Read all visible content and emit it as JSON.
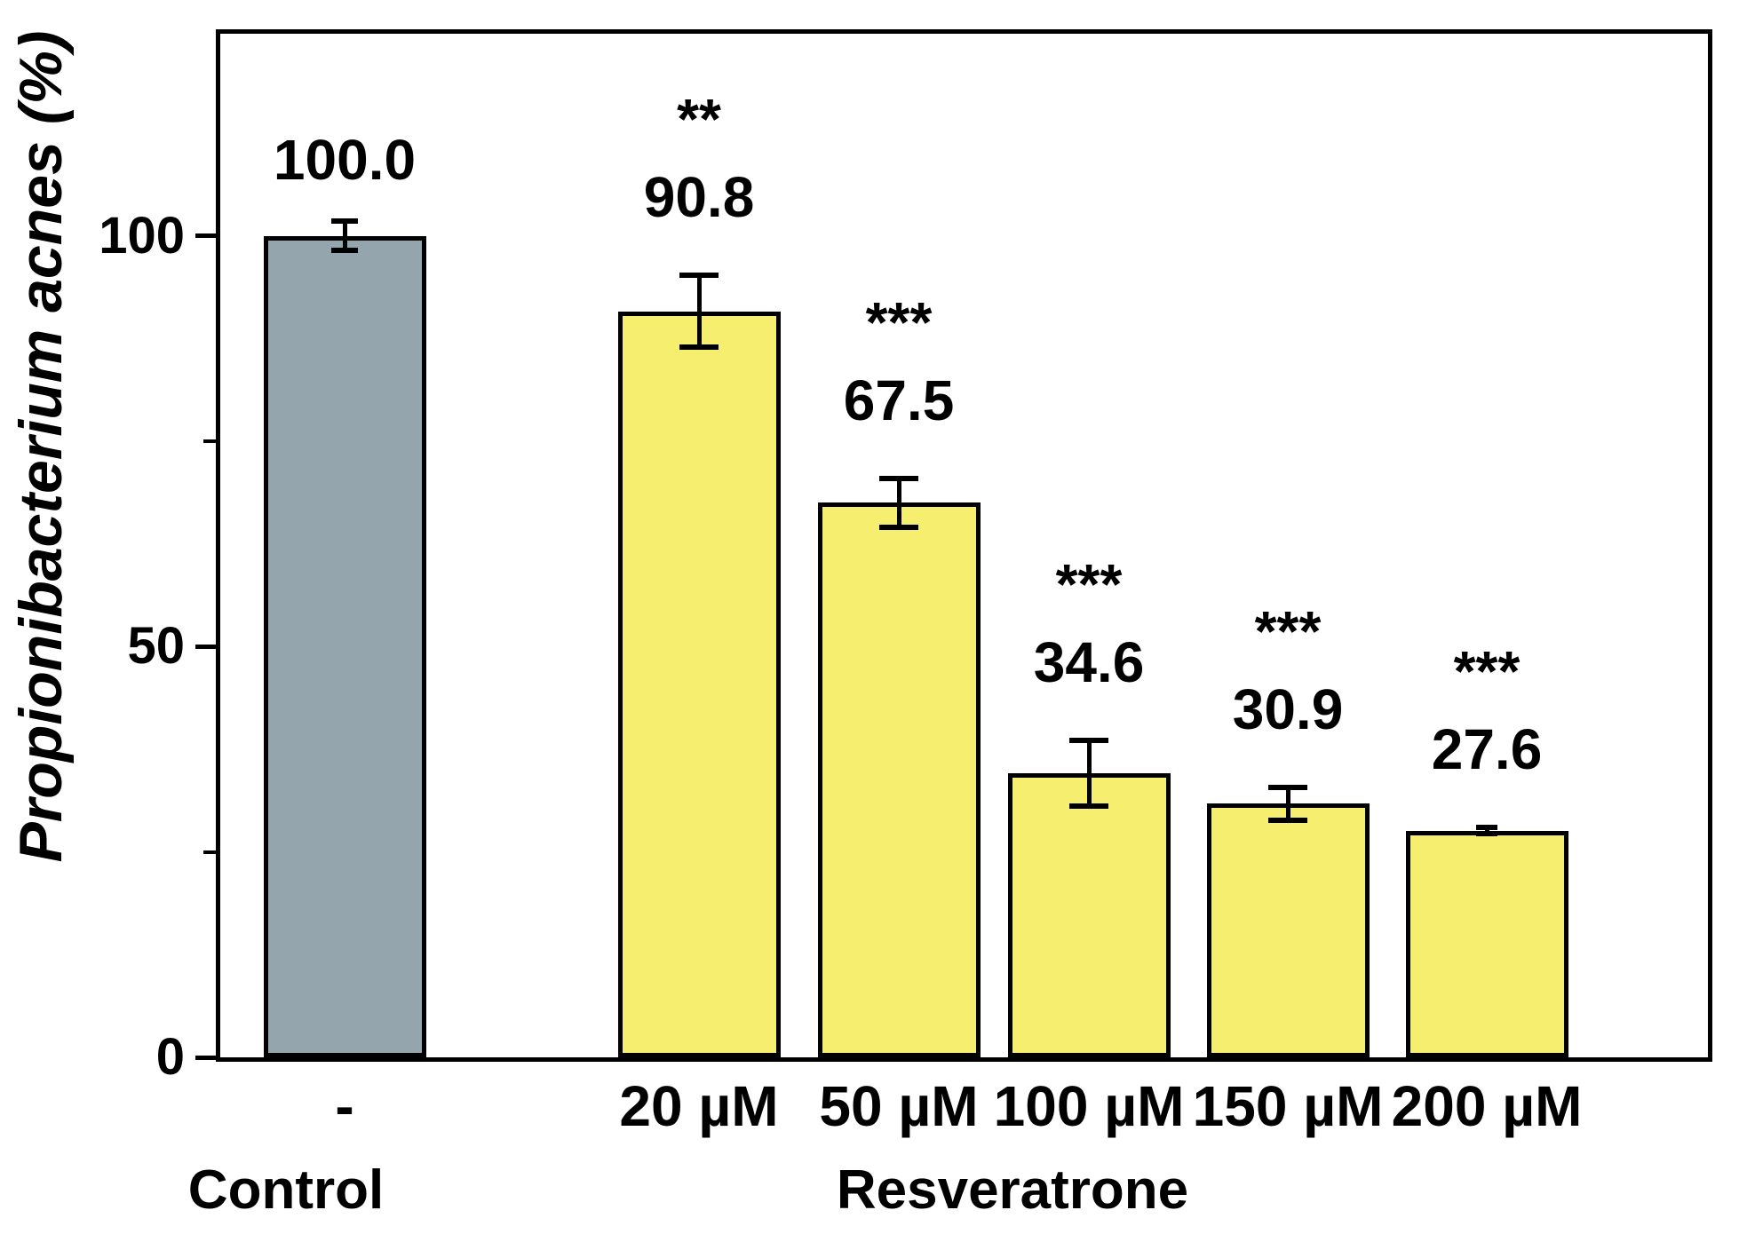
{
  "chart_data": {
    "type": "bar",
    "title": "",
    "xlabel": "",
    "ylabel": "Propionibacterium acnes (%)",
    "ylim": [
      0,
      124.6
    ],
    "grid": "off",
    "legend": "none",
    "y_major_ticks": [
      {
        "value": 0,
        "label": "0"
      },
      {
        "value": 50,
        "label": "50"
      },
      {
        "value": 100,
        "label": "100"
      }
    ],
    "y_minor_ticks": [
      25,
      75
    ],
    "bars": [
      {
        "category": "-",
        "group": "Control",
        "value": 100.0,
        "value_label": "100.0",
        "error": 1.8,
        "significance": "",
        "fill": "#95A5AD"
      },
      {
        "category": "20 µM",
        "group": "Resveratrone",
        "value": 90.8,
        "value_label": "90.8",
        "error": 4.4,
        "significance": "**",
        "fill": "#F5EE6E"
      },
      {
        "category": "50 µM",
        "group": "Resveratrone",
        "value": 67.5,
        "value_label": "67.5",
        "error": 3.0,
        "significance": "***",
        "fill": "#F5EE6E"
      },
      {
        "category": "100 µM",
        "group": "Resveratrone",
        "value": 34.6,
        "value_label": "34.6",
        "error": 4.0,
        "significance": "***",
        "fill": "#F5EE6E"
      },
      {
        "category": "150 µM",
        "group": "Resveratrone",
        "value": 30.9,
        "value_label": "30.9",
        "error": 2.0,
        "significance": "***",
        "fill": "#F5EE6E"
      },
      {
        "category": "200 µM",
        "group": "Resveratrone",
        "value": 27.6,
        "value_label": "27.6",
        "error": 0.4,
        "significance": "***",
        "fill": "#F5EE6E"
      }
    ],
    "group_labels": [
      {
        "text": "Control"
      },
      {
        "text": "Resveratrone"
      }
    ],
    "colors": {
      "bar_border": "#000000",
      "axis": "#000000",
      "text": "#000000",
      "background": "#FFFFFF"
    }
  }
}
